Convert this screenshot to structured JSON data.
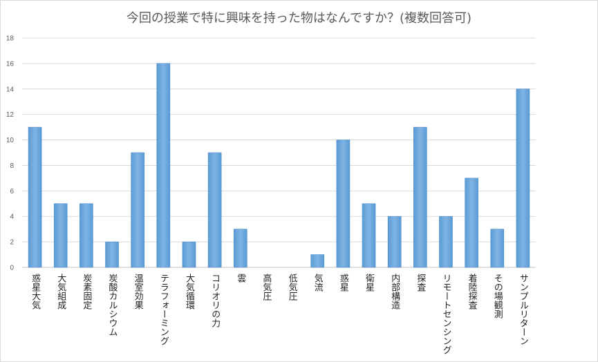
{
  "chart_data": {
    "type": "bar",
    "title": "今回の授業で特に興味を持った物はなんですか？(複数回答可)",
    "xlabel": "",
    "ylabel": "",
    "ylim": [
      0,
      18
    ],
    "yticks": [
      0,
      2,
      4,
      6,
      8,
      10,
      12,
      14,
      16,
      18
    ],
    "grid": true,
    "legend": "none",
    "categories": [
      "惑星大気",
      "大気組成",
      "炭素固定",
      "炭酸カルシウム",
      "温室効果",
      "テラフォーミング",
      "大気循環",
      "コリオリの力",
      "雲",
      "高気圧",
      "低気圧",
      "気流",
      "惑星",
      "衛星",
      "内部構造",
      "探査",
      "リモートセンシング",
      "着陸探査",
      "その場観測",
      "サンプルリターン"
    ],
    "values": [
      11,
      5,
      5,
      2,
      9,
      16,
      2,
      9,
      3,
      0,
      0,
      1,
      10,
      5,
      4,
      11,
      4,
      7,
      3,
      14
    ],
    "colors": {
      "bar": "#5b9bd5",
      "bar_light": "#79b0e2",
      "grid": "#d9d9d9",
      "axis": "#bfbfbf"
    }
  }
}
